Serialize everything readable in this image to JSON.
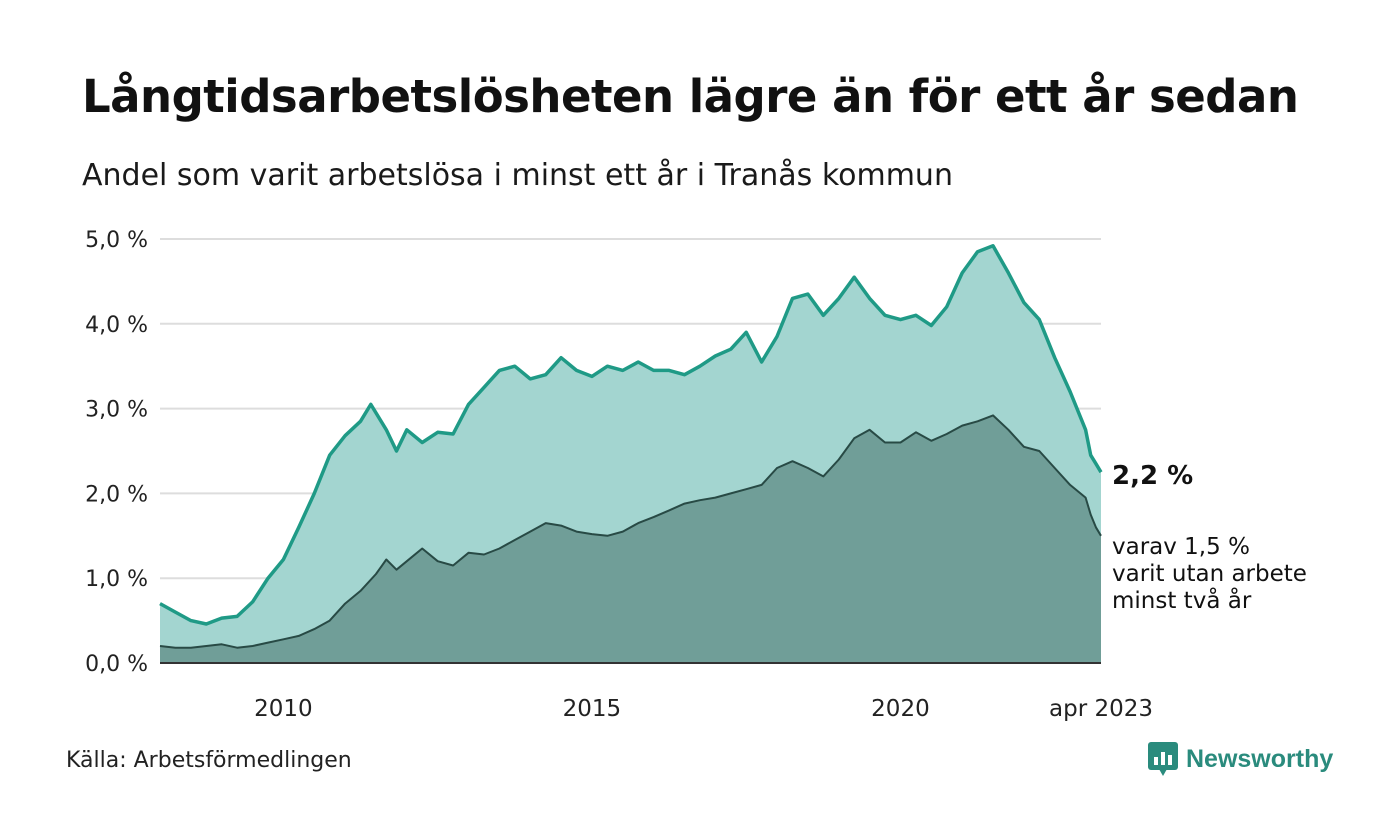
{
  "title": "Långtidsarbetslösheten lägre än för ett år sedan",
  "subtitle": "Andel som varit arbetslösa i minst ett år i Tranås kommun",
  "source": "Källa: Arbetsförmedlingen",
  "brand": "Newsworthy",
  "colors": {
    "total_fill": "#a3d5d0",
    "total_line": "#1f9a86",
    "long_fill": "#709e98",
    "long_line": "#284a45",
    "grid": "#dddddd",
    "brand": "#2a8b7d"
  },
  "chart_data": {
    "type": "area",
    "title": "Långtidsarbetslösheten lägre än för ett år sedan",
    "subtitle": "Andel som varit arbetslösa i minst ett år i Tranås kommun",
    "x_range": [
      "2008-01",
      "2023-04"
    ],
    "ylim": [
      0,
      5
    ],
    "y_ticks": [
      "0,0 %",
      "1,0 %",
      "2,0 %",
      "3,0 %",
      "4,0 %",
      "5,0 %"
    ],
    "x_ticks": [
      {
        "label": "2010",
        "date": "2010-01"
      },
      {
        "label": "2015",
        "date": "2015-01"
      },
      {
        "label": "2020",
        "date": "2020-01"
      },
      {
        "label": "apr 2023",
        "date": "2023-04"
      }
    ],
    "grid": true,
    "series": [
      {
        "key": "total",
        "end_label": "2,2 %",
        "values": [
          [
            "2008-01",
            0.7
          ],
          [
            "2008-04",
            0.6
          ],
          [
            "2008-07",
            0.5
          ],
          [
            "2008-10",
            0.46
          ],
          [
            "2009-01",
            0.53
          ],
          [
            "2009-04",
            0.55
          ],
          [
            "2009-07",
            0.72
          ],
          [
            "2009-10",
            1.0
          ],
          [
            "2010-01",
            1.22
          ],
          [
            "2010-04",
            1.6
          ],
          [
            "2010-07",
            2.0
          ],
          [
            "2010-10",
            2.45
          ],
          [
            "2011-01",
            2.68
          ],
          [
            "2011-04",
            2.85
          ],
          [
            "2011-06",
            3.05
          ],
          [
            "2011-09",
            2.75
          ],
          [
            "2011-11",
            2.5
          ],
          [
            "2012-01",
            2.75
          ],
          [
            "2012-04",
            2.6
          ],
          [
            "2012-07",
            2.72
          ],
          [
            "2012-10",
            2.7
          ],
          [
            "2013-01",
            3.05
          ],
          [
            "2013-04",
            3.25
          ],
          [
            "2013-07",
            3.45
          ],
          [
            "2013-10",
            3.5
          ],
          [
            "2014-01",
            3.35
          ],
          [
            "2014-04",
            3.4
          ],
          [
            "2014-07",
            3.6
          ],
          [
            "2014-10",
            3.45
          ],
          [
            "2015-01",
            3.38
          ],
          [
            "2015-04",
            3.5
          ],
          [
            "2015-07",
            3.45
          ],
          [
            "2015-10",
            3.55
          ],
          [
            "2016-01",
            3.45
          ],
          [
            "2016-04",
            3.45
          ],
          [
            "2016-07",
            3.4
          ],
          [
            "2016-10",
            3.5
          ],
          [
            "2017-01",
            3.62
          ],
          [
            "2017-04",
            3.7
          ],
          [
            "2017-07",
            3.9
          ],
          [
            "2017-10",
            3.55
          ],
          [
            "2018-01",
            3.85
          ],
          [
            "2018-04",
            4.3
          ],
          [
            "2018-07",
            4.35
          ],
          [
            "2018-10",
            4.1
          ],
          [
            "2019-01",
            4.3
          ],
          [
            "2019-04",
            4.55
          ],
          [
            "2019-07",
            4.3
          ],
          [
            "2019-10",
            4.1
          ],
          [
            "2020-01",
            4.05
          ],
          [
            "2020-04",
            4.1
          ],
          [
            "2020-07",
            3.98
          ],
          [
            "2020-10",
            4.2
          ],
          [
            "2021-01",
            4.6
          ],
          [
            "2021-04",
            4.85
          ],
          [
            "2021-07",
            4.92
          ],
          [
            "2021-10",
            4.6
          ],
          [
            "2022-01",
            4.25
          ],
          [
            "2022-04",
            4.05
          ],
          [
            "2022-07",
            3.6
          ],
          [
            "2022-10",
            3.2
          ],
          [
            "2023-01",
            2.75
          ],
          [
            "2023-02",
            2.45
          ],
          [
            "2023-03",
            2.35
          ],
          [
            "2023-04",
            2.25
          ]
        ]
      },
      {
        "key": "long",
        "end_label": "varav 1,5 %\nvarit utan arbete\nminst två år",
        "values": [
          [
            "2008-01",
            0.2
          ],
          [
            "2008-04",
            0.18
          ],
          [
            "2008-07",
            0.18
          ],
          [
            "2008-10",
            0.2
          ],
          [
            "2009-01",
            0.22
          ],
          [
            "2009-04",
            0.18
          ],
          [
            "2009-07",
            0.2
          ],
          [
            "2009-10",
            0.24
          ],
          [
            "2010-01",
            0.28
          ],
          [
            "2010-04",
            0.32
          ],
          [
            "2010-07",
            0.4
          ],
          [
            "2010-10",
            0.5
          ],
          [
            "2011-01",
            0.7
          ],
          [
            "2011-04",
            0.85
          ],
          [
            "2011-07",
            1.05
          ],
          [
            "2011-09",
            1.22
          ],
          [
            "2011-11",
            1.1
          ],
          [
            "2012-01",
            1.2
          ],
          [
            "2012-04",
            1.35
          ],
          [
            "2012-07",
            1.2
          ],
          [
            "2012-10",
            1.15
          ],
          [
            "2013-01",
            1.3
          ],
          [
            "2013-04",
            1.28
          ],
          [
            "2013-07",
            1.35
          ],
          [
            "2013-10",
            1.45
          ],
          [
            "2014-01",
            1.55
          ],
          [
            "2014-04",
            1.65
          ],
          [
            "2014-07",
            1.62
          ],
          [
            "2014-10",
            1.55
          ],
          [
            "2015-01",
            1.52
          ],
          [
            "2015-04",
            1.5
          ],
          [
            "2015-07",
            1.55
          ],
          [
            "2015-10",
            1.65
          ],
          [
            "2016-01",
            1.72
          ],
          [
            "2016-04",
            1.8
          ],
          [
            "2016-07",
            1.88
          ],
          [
            "2016-10",
            1.92
          ],
          [
            "2017-01",
            1.95
          ],
          [
            "2017-04",
            2.0
          ],
          [
            "2017-07",
            2.05
          ],
          [
            "2017-10",
            2.1
          ],
          [
            "2018-01",
            2.3
          ],
          [
            "2018-04",
            2.38
          ],
          [
            "2018-07",
            2.3
          ],
          [
            "2018-10",
            2.2
          ],
          [
            "2019-01",
            2.4
          ],
          [
            "2019-04",
            2.65
          ],
          [
            "2019-07",
            2.75
          ],
          [
            "2019-10",
            2.6
          ],
          [
            "2020-01",
            2.6
          ],
          [
            "2020-04",
            2.72
          ],
          [
            "2020-07",
            2.62
          ],
          [
            "2020-10",
            2.7
          ],
          [
            "2021-01",
            2.8
          ],
          [
            "2021-04",
            2.85
          ],
          [
            "2021-07",
            2.92
          ],
          [
            "2021-10",
            2.75
          ],
          [
            "2022-01",
            2.55
          ],
          [
            "2022-04",
            2.5
          ],
          [
            "2022-07",
            2.3
          ],
          [
            "2022-10",
            2.1
          ],
          [
            "2023-01",
            1.95
          ],
          [
            "2023-02",
            1.75
          ],
          [
            "2023-03",
            1.6
          ],
          [
            "2023-04",
            1.5
          ]
        ]
      }
    ]
  }
}
